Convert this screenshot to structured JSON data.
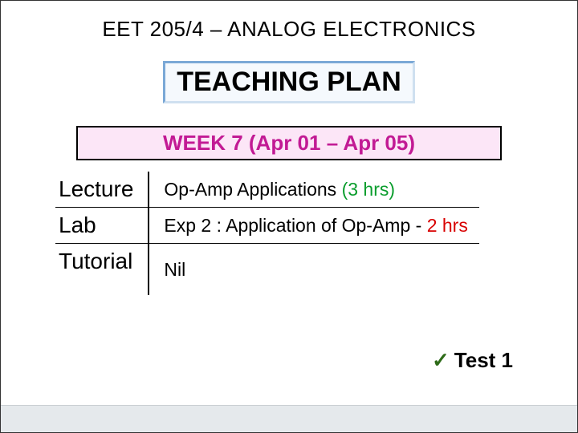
{
  "course_title": "EET 205/4 – ANALOG ELECTRONICS",
  "heading": "TEACHING PLAN",
  "week_label": "WEEK 7 (Apr 01 – Apr 05)",
  "rows": {
    "lecture": {
      "label": "Lecture",
      "detail_main": "Op-Amp Applications ",
      "detail_accent": "(3 hrs)"
    },
    "lab": {
      "label": "Lab",
      "detail_main": "Exp 2 : Application of Op-Amp - ",
      "detail_accent": "2 hrs"
    },
    "tutorial": {
      "label": "Tutorial",
      "detail_main": "Nil",
      "detail_accent": ""
    }
  },
  "test": {
    "check": "✓",
    "label": "Test 1"
  },
  "colors": {
    "week_text": "#c21a94",
    "week_bg": "#fce6f7",
    "accent_green": "#0a9d2d",
    "accent_red": "#d80000",
    "check_green": "#2d6b18"
  }
}
